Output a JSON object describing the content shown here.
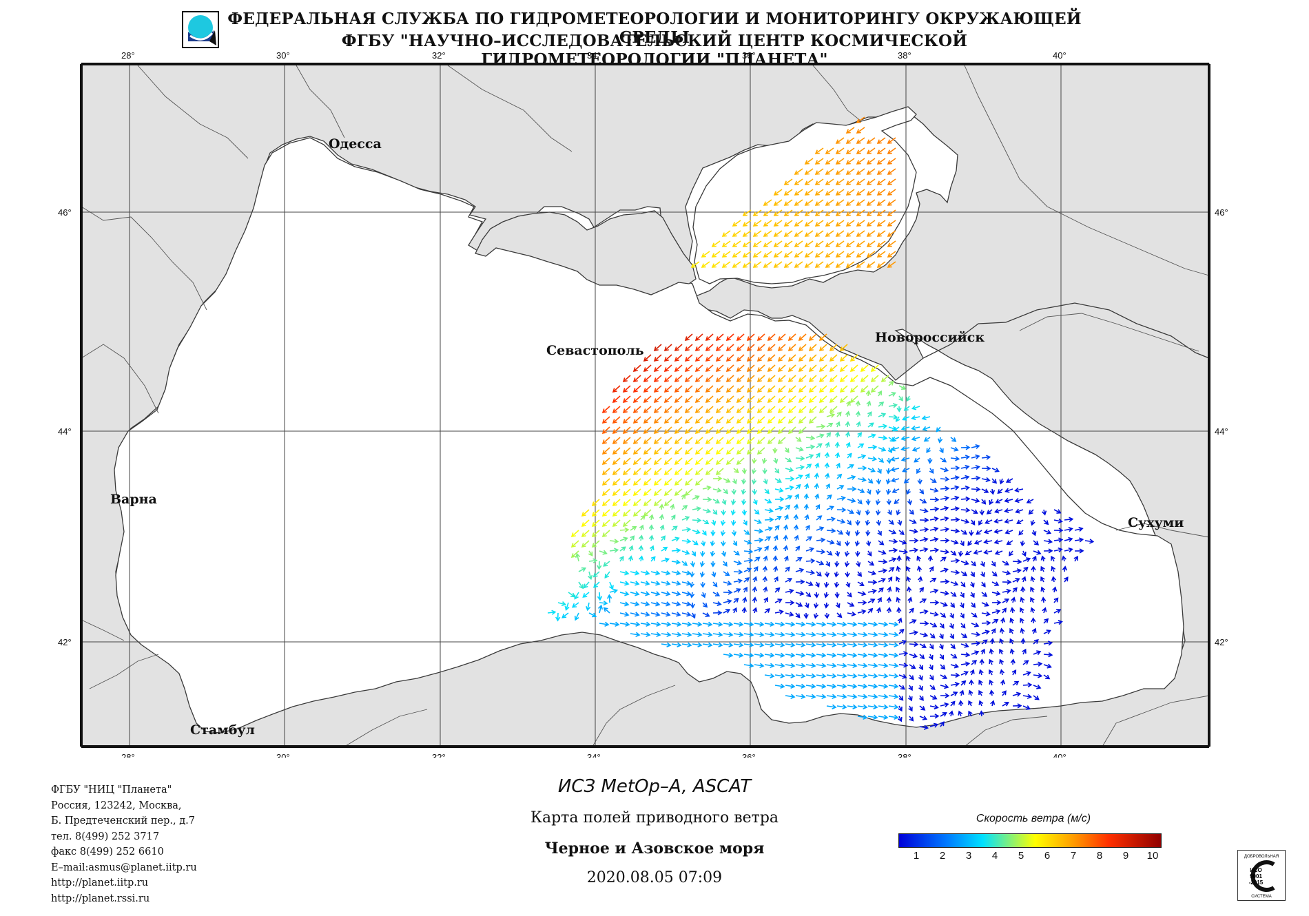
{
  "header": {
    "line1": "ФЕДЕРАЛЬНАЯ СЛУЖБА ПО ГИДРОМЕТЕОРОЛОГИИ И МОНИТОРИНГУ ОКРУЖАЮЩЕЙ СРЕДЫ",
    "line2": "ФГБУ \"НАУЧНО–ИССЛЕДОВАТЕЛЬСКИЙ ЦЕНТР КОСМИЧЕСКОЙ ГИДРОМЕТЕОРОЛОГИИ \"ПЛАНЕТА\""
  },
  "map": {
    "lon_ticks": [
      "28°",
      "30°",
      "32°",
      "34°",
      "36°",
      "38°",
      "40°"
    ],
    "lat_ticks": [
      "46°",
      "44°",
      "42°"
    ],
    "cities": {
      "odessa": "Одесса",
      "sevastopol": "Севастополь",
      "novorossiysk": "Новороссийск",
      "varna": "Варна",
      "sukhumi": "Сухуми",
      "istanbul": "Стамбул"
    },
    "colors": {
      "land": "#e2e2e2",
      "sea": "#ffffff",
      "coast": "#3a3a3a",
      "grid": "#444444"
    }
  },
  "contact": {
    "org": "ФГБУ \"НИЦ \"Планета\"",
    "address1": "Россия, 123242, Москва,",
    "address2": "Б. Предтеченский пер., д.7",
    "phone": "тел. 8(499) 252 3717",
    "fax": "факс 8(499) 252 6610",
    "email": "E–mail:asmus@planet.iitp.ru",
    "url1": "http://planet.iitp.ru",
    "url2": "http://planet.rssi.ru"
  },
  "product": {
    "satellite": "ИСЗ MetOp–A, ASCAT",
    "map_title": "Карта полей приводного ветра",
    "region": "Черное и Азовское моря",
    "datetime": "2020.08.05 07:09"
  },
  "legend": {
    "title": "Скорость ветра (м/с)",
    "ticks": [
      "1",
      "2",
      "3",
      "4",
      "5",
      "6",
      "7",
      "8",
      "9",
      "10"
    ]
  },
  "certificate": {
    "top": "ДОБРОВОЛЬНАЯ",
    "mid1": "ИСО",
    "mid2": "9001",
    "mid3": "-2015",
    "bottom": "СИСТЕМА"
  },
  "wind_fields": {
    "azov": {
      "speed_range_mps": [
        6,
        8
      ],
      "direction": "toward south-west"
    },
    "north_east_black_sea": {
      "speed_range_mps": [
        8,
        10
      ],
      "direction": "toward south-west"
    },
    "central_band": {
      "speed_range_mps": [
        4,
        7
      ],
      "direction": "toward south-west"
    },
    "south_east_black_sea": {
      "speed_range_mps": [
        1,
        4
      ],
      "direction": "variable, mostly eastward"
    }
  }
}
